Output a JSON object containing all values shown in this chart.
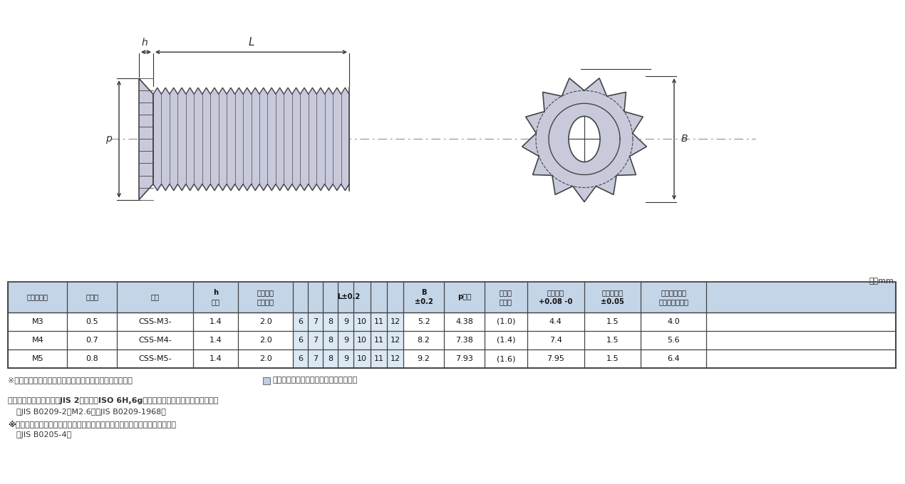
{
  "bg_color": "#ffffff",
  "part_color": "#c8cadc",
  "line_color": "#444444",
  "dim_color": "#333333",
  "table_header_bg": "#c5d5e8",
  "table_row_bg1": "#ffffff",
  "table_row_bg2": "#ffffff",
  "table_border": "#444444",
  "unit_text": "単位mm",
  "note1": "※表記以外のその他寸法についてはお問い合わせ下さい。",
  "note1b": "については在庫をお問い合わせ下さい。",
  "note2": "弊社規格品のねじ精度はJIS 2級またはISO 6H,6gの有効径範囲を満たすものである。",
  "note3": "（JIS B0209-2、M2.6のみJIS B0209-1968）",
  "note4": "※表面処理後や打疵、キズ等による変形時は有効径を基準寸法まで許容する。",
  "note5": "（JIS B0205-4）",
  "row_data": [
    [
      "M3",
      "0.5",
      "CSS-M3-",
      "1.4",
      "2.0",
      "6",
      "7",
      "8",
      "9",
      "10",
      "11",
      "12",
      "5.2",
      "4.38",
      "(1.0)",
      "4.4",
      "1.5",
      "4.0"
    ],
    [
      "M4",
      "0.7",
      "CSS-M4-",
      "1.4",
      "2.0",
      "6",
      "7",
      "8",
      "9",
      "10",
      "11",
      "12",
      "8.2",
      "7.38",
      "(1.4)",
      "7.4",
      "1.5",
      "5.6"
    ],
    [
      "M5",
      "0.8",
      "CSS-M5-",
      "1.4",
      "2.0",
      "6",
      "7",
      "8",
      "9",
      "10",
      "11",
      "12",
      "9.2",
      "7.93",
      "(1.6)",
      "7.95",
      "1.5",
      "6.4"
    ]
  ]
}
